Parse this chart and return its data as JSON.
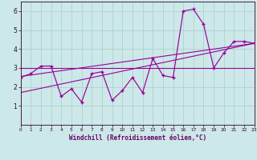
{
  "xlabel": "Windchill (Refroidissement éolien,°C)",
  "x_data": [
    0,
    1,
    2,
    3,
    4,
    5,
    6,
    7,
    8,
    9,
    10,
    11,
    12,
    13,
    14,
    15,
    16,
    17,
    18,
    19,
    20,
    21,
    22,
    23
  ],
  "y_data": [
    2.5,
    2.7,
    3.1,
    3.1,
    1.5,
    1.9,
    1.2,
    2.7,
    2.8,
    1.3,
    1.8,
    2.5,
    1.7,
    3.5,
    2.6,
    2.5,
    6.0,
    6.1,
    5.3,
    3.0,
    3.8,
    4.4,
    4.4,
    4.3
  ],
  "line_color": "#990099",
  "background_color": "#cce8e8",
  "grid_color": "#aacccc",
  "axis_label_color": "#660066",
  "tick_color": "#330033",
  "ylim": [
    0,
    6.5
  ],
  "xlim": [
    0,
    23
  ],
  "yticks": [
    1,
    2,
    3,
    4,
    5,
    6
  ],
  "xticks": [
    0,
    1,
    2,
    3,
    4,
    5,
    6,
    7,
    8,
    9,
    10,
    11,
    12,
    13,
    14,
    15,
    16,
    17,
    18,
    19,
    20,
    21,
    22,
    23
  ],
  "trend1_x": [
    0,
    23
  ],
  "trend1_y": [
    2.55,
    4.3
  ],
  "trend2_x": [
    0,
    23
  ],
  "trend2_y": [
    1.7,
    4.3
  ],
  "hline_y": 3.0
}
